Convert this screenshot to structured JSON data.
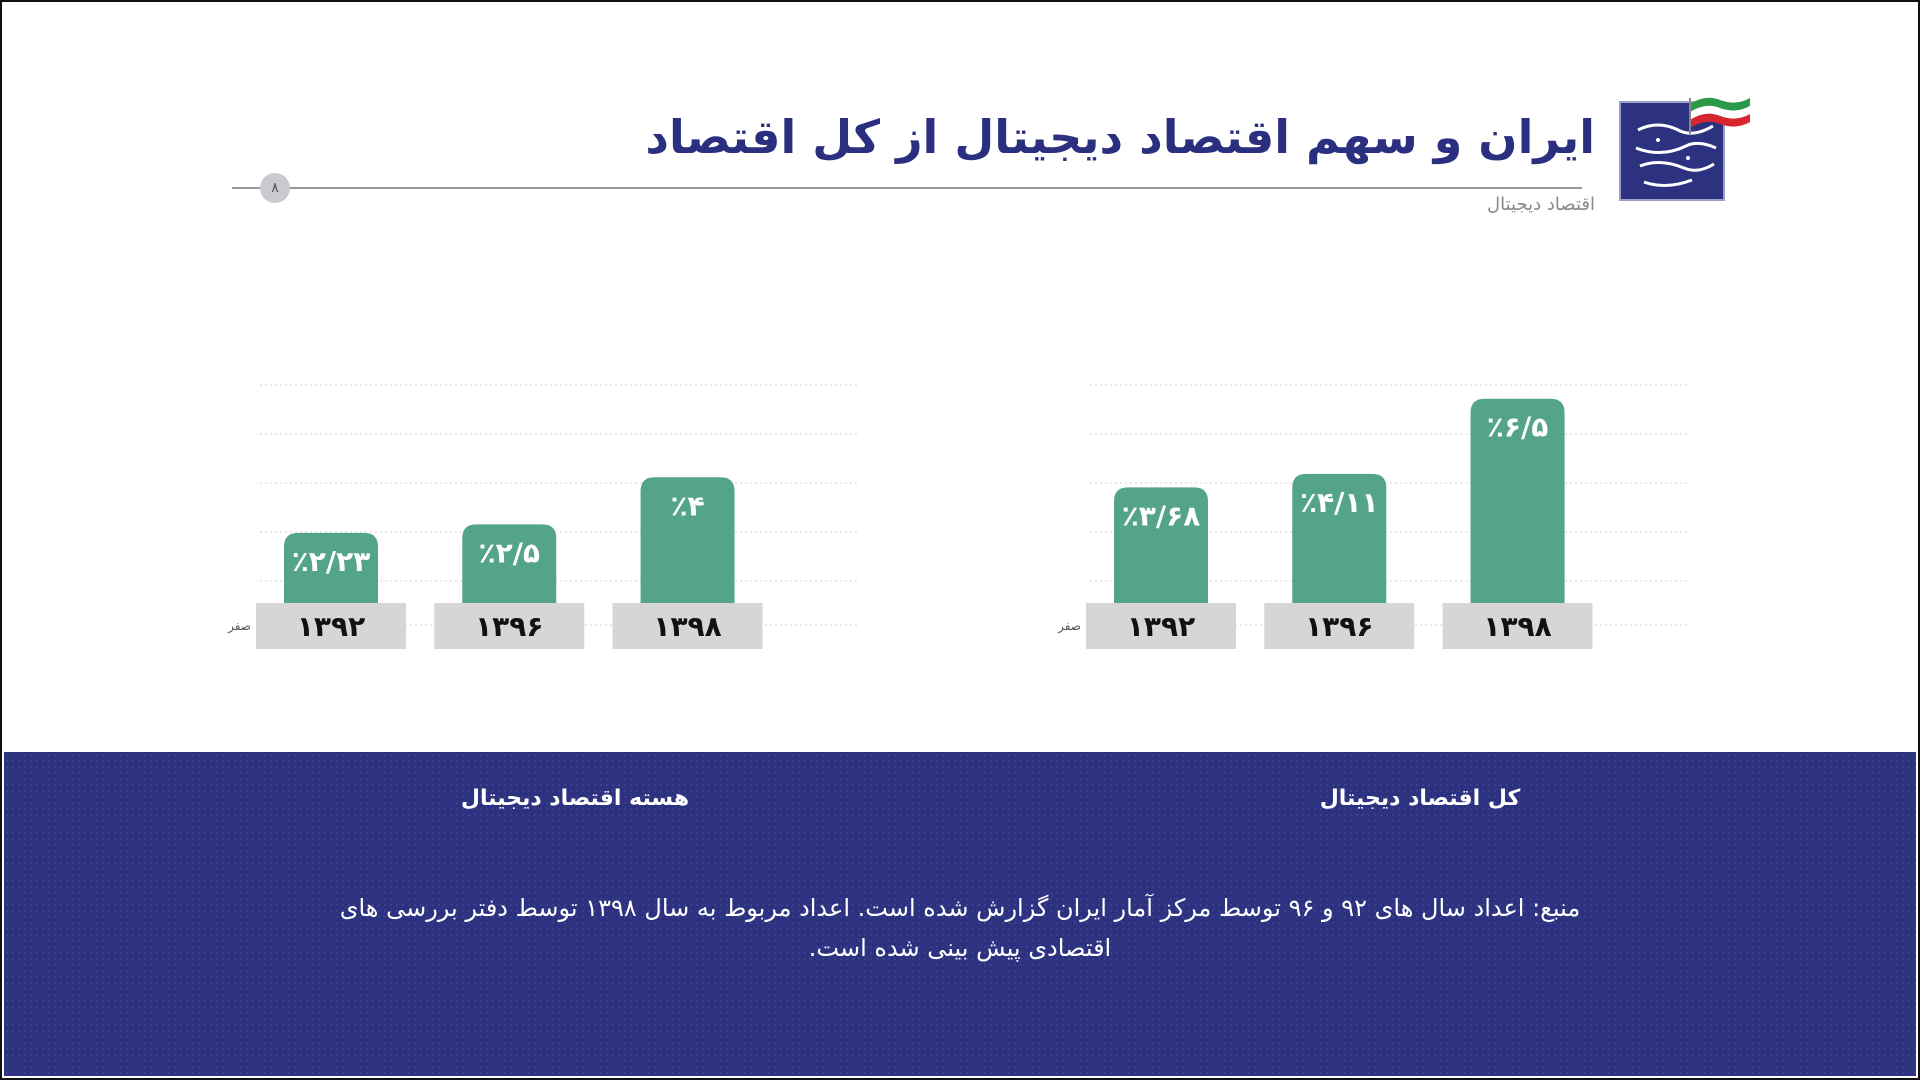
{
  "header": {
    "title": "ایران و سهم اقتصاد دیجیتال از کل اقتصاد",
    "subtitle": "اقتصاد دیجیتال",
    "page_number": "۸"
  },
  "colors": {
    "bar": "#54a48a",
    "label_bg": "#d6d6d6",
    "band": "#2c3180",
    "title": "#2b2f7f"
  },
  "logo": {
    "icon": "ministry-logo-icon"
  },
  "chart_data": [
    {
      "type": "bar",
      "title": "هسته اقتصاد دیجیتال",
      "categories": [
        "۱۳۹۲",
        "۱۳۹۶",
        "۱۳۹۸"
      ],
      "values": [
        2.23,
        2.5,
        4
      ],
      "value_labels": [
        "٪۲/۲۳",
        "٪۲/۵",
        "٪۴"
      ],
      "baseline_label": "صفر",
      "ylim": [
        0,
        7
      ],
      "grid": true
    },
    {
      "type": "bar",
      "title": "کل اقتصاد دیجیتال",
      "categories": [
        "۱۳۹۲",
        "۱۳۹۶",
        "۱۳۹۸"
      ],
      "values": [
        3.68,
        4.11,
        6.5
      ],
      "value_labels": [
        "٪۳/۶۸",
        "٪۴/۱۱",
        "٪۶/۵"
      ],
      "baseline_label": "صفر",
      "ylim": [
        0,
        7
      ],
      "grid": true
    }
  ],
  "footer": {
    "source": "منبع: اعداد سال های ۹۲ و ۹۶ توسط مرکز آمار ایران گزارش شده است. اعداد مربوط به  سال ۱۳۹۸ توسط دفتر بررسی های اقتصادی پیش بینی شده است."
  }
}
